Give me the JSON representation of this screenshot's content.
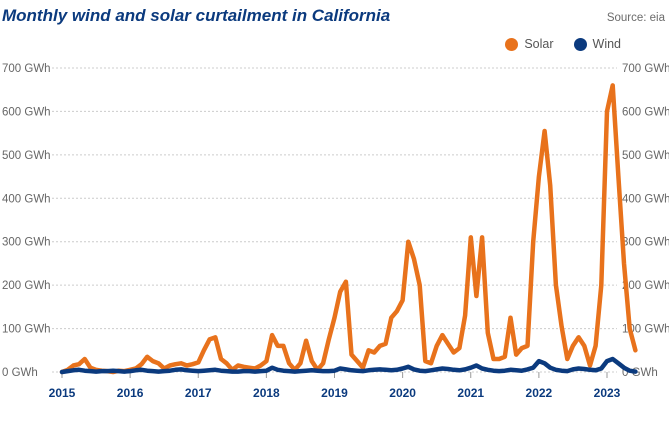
{
  "title": "Monthly wind and solar curtailment in California",
  "source": "Source: eia",
  "colors": {
    "solar": "#e8721c",
    "wind": "#0b3a7e",
    "grid": "#cccccc",
    "axis_text": "#0b3a7e"
  },
  "legend": {
    "solar": "Solar",
    "wind": "Wind"
  },
  "chart_data": {
    "type": "line",
    "title": "Monthly wind and solar curtailment in California",
    "xlabel": "",
    "ylabel": "",
    "ylim": [
      0,
      700
    ],
    "y_ticks": [
      "0 GWh",
      "100 GWh",
      "200 GWh",
      "300 GWh",
      "400 GWh",
      "500 GWh",
      "600 GWh",
      "700 GWh"
    ],
    "y_tick_values": [
      0,
      100,
      200,
      300,
      400,
      500,
      600,
      700
    ],
    "x_ticks": [
      "2015",
      "2016",
      "2017",
      "2018",
      "2019",
      "2020",
      "2021",
      "2022",
      "2023"
    ],
    "x_start": "2015-01",
    "grid": true,
    "legend_position": "top-right",
    "series": [
      {
        "name": "Solar",
        "color": "#e8721c",
        "values": [
          0,
          5,
          15,
          18,
          30,
          10,
          5,
          3,
          2,
          0,
          3,
          2,
          5,
          8,
          18,
          35,
          25,
          20,
          8,
          15,
          18,
          20,
          15,
          18,
          22,
          50,
          75,
          80,
          30,
          20,
          5,
          15,
          12,
          10,
          8,
          15,
          25,
          85,
          60,
          60,
          20,
          5,
          20,
          72,
          25,
          5,
          20,
          75,
          125,
          185,
          208,
          40,
          25,
          10,
          50,
          45,
          60,
          65,
          125,
          140,
          165,
          300,
          260,
          200,
          25,
          20,
          60,
          85,
          65,
          45,
          55,
          130,
          310,
          175,
          310,
          90,
          30,
          30,
          35,
          125,
          40,
          55,
          60,
          300,
          450,
          555,
          430,
          200,
          105,
          30,
          60,
          80,
          60,
          15,
          60,
          200,
          600,
          660,
          450,
          250,
          100,
          50
        ]
      },
      {
        "name": "Wind",
        "color": "#0b3a7e",
        "values": [
          0,
          2,
          4,
          5,
          3,
          2,
          1,
          2,
          2,
          3,
          2,
          1,
          2,
          4,
          5,
          3,
          2,
          1,
          2,
          3,
          5,
          6,
          4,
          3,
          2,
          3,
          4,
          5,
          3,
          2,
          1,
          1,
          2,
          2,
          1,
          2,
          3,
          10,
          5,
          3,
          2,
          1,
          2,
          3,
          4,
          3,
          2,
          2,
          3,
          8,
          6,
          4,
          3,
          2,
          4,
          5,
          6,
          5,
          4,
          5,
          8,
          12,
          6,
          3,
          2,
          4,
          6,
          8,
          7,
          5,
          4,
          6,
          10,
          15,
          8,
          5,
          3,
          2,
          3,
          5,
          4,
          3,
          6,
          10,
          25,
          20,
          10,
          5,
          3,
          2,
          6,
          8,
          7,
          5,
          4,
          8,
          25,
          30,
          20,
          10,
          3,
          1
        ]
      }
    ]
  }
}
